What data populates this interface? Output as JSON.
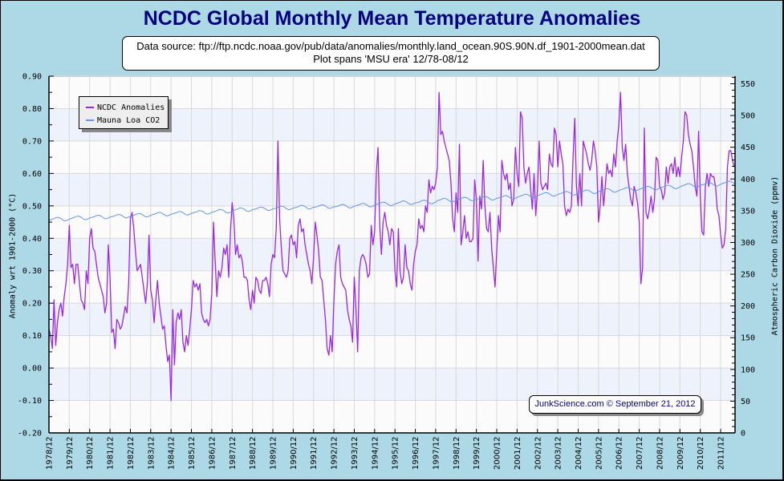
{
  "chart_data": {
    "type": "line",
    "title": "NCDC Global Monthly Mean Temperature Anomalies",
    "subtitle": [
      "Data source: ftp://ftp.ncdc.noaa.gov/pub/data/anomalies/monthly.land_ocean.90S.90N.df_1901-2000mean.dat",
      "Plot spans 'MSU era' 12/78-08/12"
    ],
    "xlabel": "",
    "ylabel": "Anomaly wrt 1901-2000 (°C)",
    "y2label": "Atmospheric Carbon Dioxide (ppmv)",
    "xticks": [
      "1978/12",
      "1979/12",
      "1980/12",
      "1981/12",
      "1982/12",
      "1983/12",
      "1984/12",
      "1985/12",
      "1986/12",
      "1987/12",
      "1988/12",
      "1989/12",
      "1990/12",
      "1991/12",
      "1992/12",
      "1993/12",
      "1994/12",
      "1995/12",
      "1996/12",
      "1997/12",
      "1998/12",
      "1999/12",
      "2000/12",
      "2001/12",
      "2002/12",
      "2003/12",
      "2004/12",
      "2005/12",
      "2006/12",
      "2007/12",
      "2008/12",
      "2009/12",
      "2010/12",
      "2011/12"
    ],
    "ylim": [
      -0.2,
      0.9
    ],
    "yticks": [
      "-0.20",
      "-0.10",
      "0.00",
      "0.10",
      "0.20",
      "0.30",
      "0.40",
      "0.50",
      "0.60",
      "0.70",
      "0.80",
      "0.90"
    ],
    "y2lim": [
      0,
      562
    ],
    "y2ticks": [
      "0",
      "50",
      "100",
      "150",
      "200",
      "250",
      "300",
      "350",
      "400",
      "450",
      "500",
      "550"
    ],
    "grid": true,
    "legend": "top-left",
    "series": [
      {
        "name": "NCDC Anomalies",
        "color": "#9b27e6",
        "values": [
          0.12,
          0.1,
          0.06,
          0.21,
          0.07,
          0.14,
          0.18,
          0.2,
          0.16,
          0.22,
          0.26,
          0.32,
          0.44,
          0.31,
          0.32,
          0.26,
          0.32,
          0.32,
          0.26,
          0.21,
          0.2,
          0.18,
          0.3,
          0.26,
          0.4,
          0.43,
          0.37,
          0.36,
          0.32,
          0.28,
          0.26,
          0.24,
          0.22,
          0.17,
          0.2,
          0.38,
          0.28,
          0.11,
          0.12,
          0.06,
          0.15,
          0.14,
          0.12,
          0.13,
          0.16,
          0.19,
          0.17,
          0.26,
          0.46,
          0.48,
          0.43,
          0.36,
          0.3,
          0.31,
          0.32,
          0.28,
          0.24,
          0.2,
          0.26,
          0.41,
          0.24,
          0.21,
          0.14,
          0.21,
          0.27,
          0.2,
          0.16,
          0.12,
          0.13,
          0.07,
          0.02,
          0.04,
          -0.1,
          0.18,
          0.01,
          0.14,
          0.17,
          0.15,
          0.18,
          0.08,
          0.05,
          0.1,
          0.07,
          0.12,
          0.18,
          0.27,
          0.25,
          0.26,
          0.24,
          0.26,
          0.17,
          0.15,
          0.14,
          0.15,
          0.13,
          0.15,
          0.23,
          0.45,
          0.33,
          0.22,
          0.3,
          0.28,
          0.31,
          0.37,
          0.35,
          0.38,
          0.28,
          0.42,
          0.51,
          0.46,
          0.35,
          0.38,
          0.34,
          0.35,
          0.33,
          0.28,
          0.28,
          0.27,
          0.21,
          0.18,
          0.24,
          0.2,
          0.28,
          0.27,
          0.24,
          0.23,
          0.27,
          0.27,
          0.28,
          0.26,
          0.22,
          0.32,
          0.35,
          0.34,
          0.43,
          0.7,
          0.46,
          0.37,
          0.3,
          0.29,
          0.28,
          0.3,
          0.4,
          0.41,
          0.38,
          0.39,
          0.34,
          0.44,
          0.46,
          0.42,
          0.43,
          0.38,
          0.35,
          0.32,
          0.3,
          0.26,
          0.34,
          0.45,
          0.41,
          0.36,
          0.28,
          0.27,
          0.21,
          0.15,
          0.06,
          0.04,
          0.1,
          0.05,
          0.21,
          0.32,
          0.36,
          0.38,
          0.28,
          0.26,
          0.25,
          0.24,
          0.18,
          0.15,
          0.13,
          0.08,
          0.28,
          0.18,
          0.05,
          0.3,
          0.34,
          0.35,
          0.34,
          0.32,
          0.28,
          0.29,
          0.44,
          0.38,
          0.42,
          0.6,
          0.68,
          0.44,
          0.35,
          0.45,
          0.48,
          0.44,
          0.42,
          0.38,
          0.43,
          0.42,
          0.3,
          0.25,
          0.43,
          0.3,
          0.26,
          0.28,
          0.38,
          0.31,
          0.3,
          0.26,
          0.24,
          0.32,
          0.36,
          0.38,
          0.46,
          0.43,
          0.44,
          0.42,
          0.5,
          0.48,
          0.58,
          0.54,
          0.56,
          0.55,
          0.57,
          0.62,
          0.85,
          0.72,
          0.73,
          0.7,
          0.68,
          0.66,
          0.64,
          0.57,
          0.46,
          0.42,
          0.54,
          0.48,
          0.69,
          0.38,
          0.42,
          0.47,
          0.4,
          0.42,
          0.39,
          0.39,
          0.4,
          0.58,
          0.52,
          0.33,
          0.53,
          0.49,
          0.64,
          0.5,
          0.43,
          0.42,
          0.48,
          0.37,
          0.31,
          0.25,
          0.36,
          0.47,
          0.42,
          0.64,
          0.6,
          0.58,
          0.6,
          0.55,
          0.57,
          0.5,
          0.52,
          0.68,
          0.6,
          0.56,
          0.79,
          0.77,
          0.62,
          0.57,
          0.6,
          0.62,
          0.55,
          0.49,
          0.6,
          0.47,
          0.55,
          0.7,
          0.57,
          0.55,
          0.56,
          0.57,
          0.55,
          0.66,
          0.63,
          0.62,
          0.74,
          0.72,
          0.62,
          0.7,
          0.66,
          0.63,
          0.5,
          0.47,
          0.49,
          0.48,
          0.5,
          0.65,
          0.77,
          0.56,
          0.5,
          0.6,
          0.5,
          0.7,
          0.68,
          0.66,
          0.63,
          0.61,
          0.64,
          0.7,
          0.67,
          0.62,
          0.45,
          0.5,
          0.59,
          0.5,
          0.56,
          0.63,
          0.6,
          0.61,
          0.59,
          0.66,
          0.62,
          0.7,
          0.75,
          0.85,
          0.68,
          0.64,
          0.69,
          0.6,
          0.56,
          0.52,
          0.5,
          0.56,
          0.54,
          0.51,
          0.45,
          0.26,
          0.31,
          0.74,
          0.48,
          0.46,
          0.49,
          0.53,
          0.48,
          0.52,
          0.65,
          0.64,
          0.56,
          0.55,
          0.52,
          0.54,
          0.62,
          0.57,
          0.62,
          0.63,
          0.6,
          0.65,
          0.59,
          0.62,
          0.59,
          0.65,
          0.7,
          0.79,
          0.78,
          0.72,
          0.69,
          0.67,
          0.62,
          0.56,
          0.53,
          0.73,
          0.53,
          0.42,
          0.41,
          0.56,
          0.6,
          0.56,
          0.6,
          0.59,
          0.59,
          0.56,
          0.49,
          0.47,
          0.41,
          0.37,
          0.38,
          0.43,
          0.62,
          0.67,
          0.67,
          0.64,
          0.62
        ]
      },
      {
        "name": "Mauna Loa CO2",
        "color": "#6495ed",
        "values": [
          335.3,
          335.9,
          336.7,
          337.6,
          339.0,
          339.6,
          339.1,
          337.8,
          335.8,
          334.2,
          334.1,
          335.4,
          336.7,
          337.8,
          338.6,
          339.5,
          340.9,
          341.5,
          341.0,
          339.7,
          337.7,
          336.1,
          336.0,
          337.3,
          338.6,
          339.2,
          340.0,
          340.9,
          342.3,
          342.9,
          342.4,
          341.1,
          339.1,
          337.5,
          337.4,
          338.7,
          340.0,
          340.5,
          341.3,
          342.2,
          343.6,
          344.2,
          343.7,
          342.4,
          340.4,
          338.8,
          338.7,
          340.0,
          341.3,
          342.1,
          342.9,
          343.8,
          345.2,
          345.8,
          345.3,
          344.0,
          342.0,
          340.4,
          340.3,
          341.6,
          342.9,
          343.7,
          344.5,
          345.4,
          346.8,
          347.4,
          346.9,
          345.6,
          343.6,
          342.0,
          341.9,
          343.2,
          344.5,
          345.1,
          345.9,
          346.8,
          348.2,
          348.8,
          348.3,
          347.0,
          345.0,
          343.4,
          343.3,
          344.6,
          345.9,
          346.5,
          347.3,
          348.2,
          349.6,
          350.2,
          349.7,
          348.4,
          346.4,
          344.8,
          344.7,
          346.0,
          347.3,
          348.3,
          349.1,
          350.0,
          351.4,
          352.0,
          351.5,
          350.2,
          348.2,
          346.6,
          346.5,
          347.8,
          349.1,
          350.7,
          351.5,
          352.4,
          353.8,
          354.4,
          353.9,
          352.6,
          350.6,
          349.0,
          348.9,
          350.2,
          351.5,
          352.2,
          353.0,
          353.9,
          355.3,
          355.9,
          355.4,
          354.1,
          352.1,
          350.5,
          350.4,
          351.7,
          353.0,
          353.5,
          354.3,
          355.2,
          356.6,
          357.2,
          356.7,
          355.4,
          353.4,
          351.8,
          351.7,
          353.0,
          354.3,
          354.7,
          355.5,
          356.4,
          357.8,
          358.4,
          357.9,
          356.6,
          354.6,
          353.0,
          352.9,
          354.2,
          355.5,
          355.6,
          356.4,
          357.3,
          358.7,
          359.3,
          358.8,
          357.5,
          355.5,
          353.9,
          353.8,
          355.1,
          356.4,
          356.2,
          357.0,
          357.9,
          359.3,
          359.9,
          359.4,
          358.1,
          356.1,
          354.5,
          354.4,
          355.7,
          357.0,
          357.9,
          358.7,
          359.6,
          361.0,
          361.6,
          361.1,
          359.8,
          357.8,
          356.2,
          356.1,
          357.4,
          358.7,
          359.9,
          360.7,
          361.6,
          363.0,
          363.6,
          363.1,
          361.8,
          359.8,
          358.2,
          358.1,
          359.4,
          360.7,
          361.7,
          362.5,
          363.4,
          364.8,
          365.4,
          364.9,
          363.6,
          361.6,
          360.0,
          359.9,
          361.2,
          362.5,
          362.8,
          363.6,
          364.5,
          365.9,
          366.5,
          366.0,
          364.7,
          362.7,
          361.1,
          361.0,
          362.3,
          363.6,
          365.8,
          366.6,
          367.5,
          368.9,
          369.5,
          369.0,
          367.7,
          365.7,
          364.1,
          364.0,
          365.3,
          366.6,
          367.5,
          368.3,
          369.2,
          370.6,
          371.2,
          370.7,
          369.4,
          367.4,
          365.8,
          365.7,
          367.0,
          368.3,
          368.7,
          369.5,
          370.4,
          371.8,
          372.4,
          371.9,
          370.6,
          368.6,
          367.0,
          366.9,
          368.2,
          369.5,
          370.2,
          371.0,
          371.9,
          373.3,
          373.9,
          373.4,
          372.1,
          370.1,
          368.5,
          368.4,
          369.7,
          371.0,
          372.4,
          373.2,
          374.1,
          375.5,
          376.1,
          375.6,
          374.3,
          372.3,
          370.7,
          370.6,
          371.9,
          373.2,
          374.9,
          375.7,
          376.6,
          378.0,
          378.6,
          378.1,
          376.8,
          374.8,
          373.2,
          373.1,
          374.4,
          375.7,
          376.6,
          377.4,
          378.3,
          379.7,
          380.3,
          379.8,
          378.5,
          376.5,
          374.9,
          374.8,
          376.1,
          377.4,
          378.9,
          379.7,
          380.6,
          382.0,
          382.6,
          382.1,
          380.8,
          378.8,
          377.2,
          377.1,
          378.4,
          379.7,
          381.0,
          381.8,
          382.7,
          384.1,
          384.7,
          384.2,
          382.9,
          380.9,
          379.3,
          379.2,
          380.5,
          381.8,
          382.9,
          383.7,
          384.6,
          386.0,
          386.6,
          386.1,
          384.8,
          382.8,
          381.2,
          381.1,
          382.4,
          383.7,
          384.7,
          385.5,
          386.4,
          387.8,
          388.4,
          387.9,
          386.6,
          384.6,
          383.0,
          382.9,
          384.2,
          385.5,
          386.5,
          387.3,
          388.2,
          389.6,
          390.2,
          389.7,
          388.4,
          386.4,
          384.8,
          384.7,
          386.0,
          387.3,
          389.0,
          389.8,
          390.7,
          392.1,
          392.7,
          392.2,
          390.9,
          388.9,
          387.3,
          387.2,
          388.5,
          389.8,
          390.7,
          391.5,
          392.4,
          393.8,
          394.4,
          393.9,
          392.6,
          390.6,
          389.0,
          388.9,
          390.2,
          391.5,
          392.9,
          393.7,
          394.6,
          396.0,
          396.6,
          396.1,
          394.8,
          392.8
        ]
      }
    ],
    "annotations": [
      "JunkScience.com © September 21, 2012"
    ]
  },
  "colors": {
    "page_background": "#add8e6",
    "title": "#000080",
    "credit_text": "#000080",
    "band_light": "#fbfbfb",
    "band_blue": "#edf2fc",
    "grid": "#d9d9d9"
  }
}
